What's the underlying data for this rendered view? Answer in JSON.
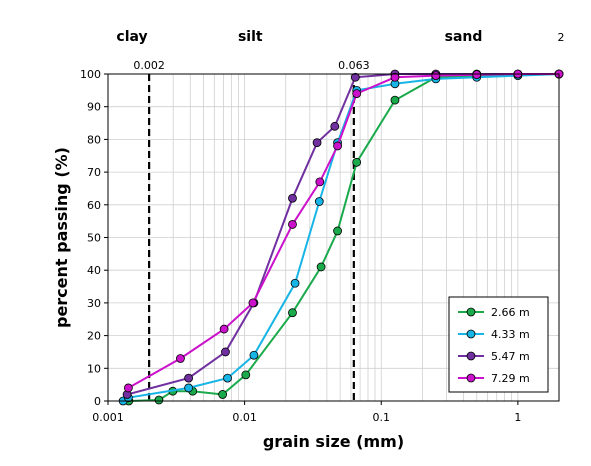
{
  "chart_data": {
    "type": "line",
    "xlabel": "grain size (mm)",
    "ylabel": "percent passing (%)",
    "x_scale": "log",
    "xlim": [
      0.001,
      2
    ],
    "ylim": [
      0,
      100
    ],
    "x_ticks": [
      0.001,
      0.01,
      0.1,
      1
    ],
    "x_tick_labels": [
      "0.001",
      "0.01",
      "0.1",
      "1"
    ],
    "y_ticks": [
      0,
      10,
      20,
      30,
      40,
      50,
      60,
      70,
      80,
      90,
      100
    ],
    "y_tick_labels": [
      "0",
      "10",
      "20",
      "30",
      "40",
      "50",
      "60",
      "70",
      "80",
      "90",
      "100"
    ],
    "grid": true,
    "legend_position": "bottom-right",
    "zones": [
      {
        "label": "clay",
        "x": 0.0015
      },
      {
        "label": "silt",
        "x": 0.011
      },
      {
        "label": "sand",
        "x": 0.4
      }
    ],
    "reference_lines": [
      {
        "x": 0.002,
        "label": "0.002"
      },
      {
        "x": 0.063,
        "label": "0.063"
      },
      {
        "x": 2,
        "label": "2"
      }
    ],
    "series": [
      {
        "name": "2.66 m",
        "color": "#1aaa4b",
        "points": [
          [
            0.00142,
            0
          ],
          [
            0.00236,
            0.3
          ],
          [
            0.00298,
            3
          ],
          [
            0.00417,
            3
          ],
          [
            0.0069,
            2
          ],
          [
            0.0102,
            8
          ],
          [
            0.0224,
            27
          ],
          [
            0.0363,
            41
          ],
          [
            0.0479,
            52
          ],
          [
            0.0661,
            73
          ],
          [
            0.126,
            92
          ],
          [
            0.251,
            99
          ],
          [
            0.5,
            99.5
          ],
          [
            1.0,
            99.8
          ],
          [
            2.0,
            100
          ]
        ]
      },
      {
        "name": "4.33 m",
        "color": "#17b4e6",
        "points": [
          [
            0.00129,
            0
          ],
          [
            0.00141,
            1
          ],
          [
            0.00389,
            4
          ],
          [
            0.0075,
            7
          ],
          [
            0.0117,
            14
          ],
          [
            0.0234,
            36
          ],
          [
            0.0352,
            61
          ],
          [
            0.0479,
            79
          ],
          [
            0.0661,
            95
          ],
          [
            0.126,
            97
          ],
          [
            0.251,
            98.5
          ],
          [
            0.5,
            99
          ],
          [
            1.0,
            99.5
          ],
          [
            2.0,
            100
          ]
        ]
      },
      {
        "name": "5.47 m",
        "color": "#7030a0",
        "points": [
          [
            0.00138,
            2
          ],
          [
            0.00389,
            7
          ],
          [
            0.00724,
            15
          ],
          [
            0.0117,
            30
          ],
          [
            0.0224,
            62
          ],
          [
            0.0339,
            79
          ],
          [
            0.0457,
            84
          ],
          [
            0.0646,
            99
          ],
          [
            0.126,
            100
          ],
          [
            0.251,
            100
          ],
          [
            0.5,
            100
          ],
          [
            1.0,
            100
          ],
          [
            2.0,
            100
          ]
        ]
      },
      {
        "name": "7.29 m",
        "color": "#cc11cc",
        "points": [
          [
            0.00141,
            4
          ],
          [
            0.00339,
            13
          ],
          [
            0.00708,
            22
          ],
          [
            0.0115,
            30
          ],
          [
            0.0224,
            54
          ],
          [
            0.0355,
            67
          ],
          [
            0.0479,
            78
          ],
          [
            0.0661,
            94
          ],
          [
            0.126,
            99
          ],
          [
            0.251,
            99.5
          ],
          [
            0.5,
            99.8
          ],
          [
            1.0,
            100
          ],
          [
            2.0,
            100
          ]
        ]
      }
    ]
  }
}
